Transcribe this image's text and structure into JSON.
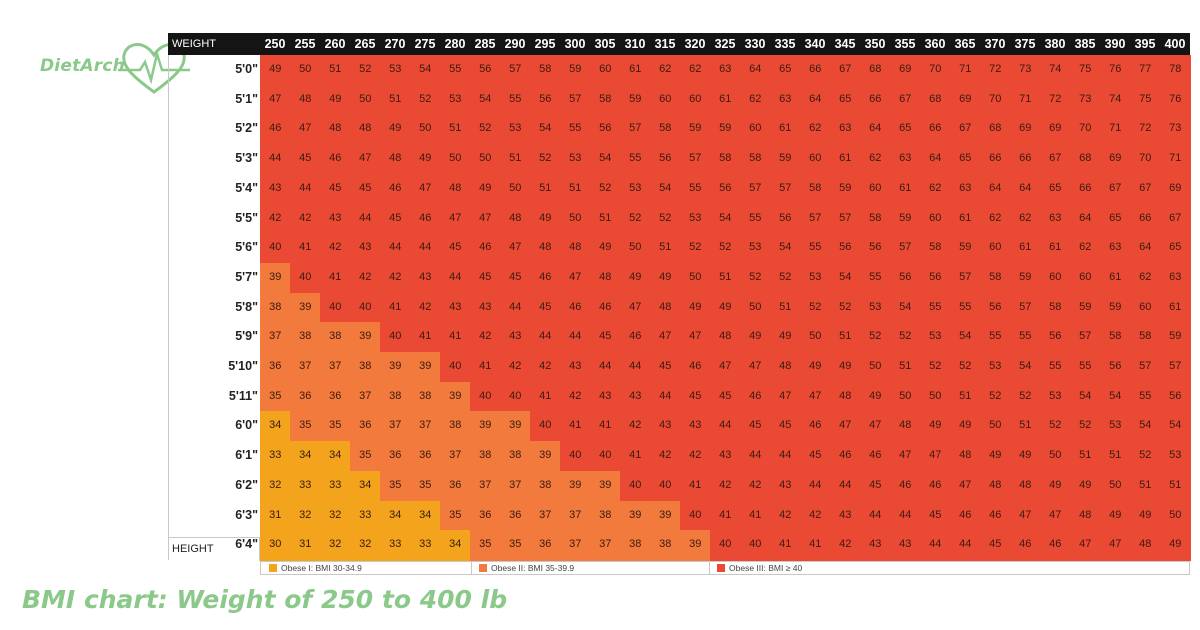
{
  "logo": {
    "text": "DietArch",
    "icon": "heart-pulse-icon",
    "color": "#8bc98a"
  },
  "caption": "BMI chart: Weight of 250 to 400 lb",
  "chart_data": {
    "type": "table",
    "title": "",
    "column_header": "WEIGHT",
    "row_header": "HEIGHT",
    "weights": [
      250,
      255,
      260,
      265,
      270,
      275,
      280,
      285,
      290,
      295,
      300,
      305,
      310,
      315,
      320,
      325,
      330,
      335,
      340,
      345,
      350,
      355,
      360,
      365,
      370,
      375,
      380,
      385,
      390,
      395,
      400
    ],
    "heights": [
      "5'0\"",
      "5'1\"",
      "5'2\"",
      "5'3\"",
      "5'4\"",
      "5'5\"",
      "5'6\"",
      "5'7\"",
      "5'8\"",
      "5'9\"",
      "5'10\"",
      "5'11\"",
      "6'0\"",
      "6'1\"",
      "6'2\"",
      "6'3\"",
      "6'4\""
    ],
    "values": [
      [
        49,
        50,
        51,
        52,
        53,
        54,
        55,
        56,
        57,
        58,
        59,
        60,
        61,
        62,
        62,
        63,
        64,
        65,
        66,
        67,
        68,
        69,
        70,
        71,
        72,
        73,
        74,
        75,
        76,
        77,
        78
      ],
      [
        47,
        48,
        49,
        50,
        51,
        52,
        53,
        54,
        55,
        56,
        57,
        58,
        59,
        60,
        60,
        61,
        62,
        63,
        64,
        65,
        66,
        67,
        68,
        69,
        70,
        71,
        72,
        73,
        74,
        75,
        76
      ],
      [
        46,
        47,
        48,
        48,
        49,
        50,
        51,
        52,
        53,
        54,
        55,
        56,
        57,
        58,
        59,
        59,
        60,
        61,
        62,
        63,
        64,
        65,
        66,
        67,
        68,
        69,
        69,
        70,
        71,
        72,
        73
      ],
      [
        44,
        45,
        46,
        47,
        48,
        49,
        50,
        50,
        51,
        52,
        53,
        54,
        55,
        56,
        57,
        58,
        58,
        59,
        60,
        61,
        62,
        63,
        64,
        65,
        66,
        66,
        67,
        68,
        69,
        70,
        71
      ],
      [
        43,
        44,
        45,
        45,
        46,
        47,
        48,
        49,
        50,
        51,
        51,
        52,
        53,
        54,
        55,
        56,
        57,
        57,
        58,
        59,
        60,
        61,
        62,
        63,
        64,
        64,
        65,
        66,
        67,
        67,
        69
      ],
      [
        42,
        42,
        43,
        44,
        45,
        46,
        47,
        47,
        48,
        49,
        50,
        51,
        52,
        52,
        53,
        54,
        55,
        56,
        57,
        57,
        58,
        59,
        60,
        61,
        62,
        62,
        63,
        64,
        65,
        66,
        67
      ],
      [
        40,
        41,
        42,
        43,
        44,
        44,
        45,
        46,
        47,
        48,
        48,
        49,
        50,
        51,
        52,
        52,
        53,
        54,
        55,
        56,
        56,
        57,
        58,
        59,
        60,
        61,
        61,
        62,
        63,
        64,
        65
      ],
      [
        39,
        40,
        41,
        42,
        42,
        43,
        44,
        45,
        45,
        46,
        47,
        48,
        49,
        49,
        50,
        51,
        52,
        52,
        53,
        54,
        55,
        56,
        56,
        57,
        58,
        59,
        60,
        60,
        61,
        62,
        63
      ],
      [
        38,
        39,
        40,
        40,
        41,
        42,
        43,
        43,
        44,
        45,
        46,
        46,
        47,
        48,
        49,
        49,
        50,
        51,
        52,
        52,
        53,
        54,
        55,
        55,
        56,
        57,
        58,
        59,
        59,
        60,
        61
      ],
      [
        37,
        38,
        38,
        39,
        40,
        41,
        41,
        42,
        43,
        44,
        44,
        45,
        46,
        47,
        47,
        48,
        49,
        49,
        50,
        51,
        52,
        52,
        53,
        54,
        55,
        55,
        56,
        57,
        58,
        58,
        59
      ],
      [
        36,
        37,
        37,
        38,
        39,
        39,
        40,
        41,
        42,
        42,
        43,
        44,
        44,
        45,
        46,
        47,
        47,
        48,
        49,
        49,
        50,
        51,
        52,
        52,
        53,
        54,
        55,
        55,
        56,
        57,
        57
      ],
      [
        35,
        36,
        36,
        37,
        38,
        38,
        39,
        40,
        40,
        41,
        42,
        43,
        43,
        44,
        45,
        45,
        46,
        47,
        47,
        48,
        49,
        50,
        50,
        51,
        52,
        52,
        53,
        54,
        54,
        55,
        56
      ],
      [
        34,
        35,
        35,
        36,
        37,
        37,
        38,
        39,
        39,
        40,
        41,
        41,
        42,
        43,
        43,
        44,
        45,
        45,
        46,
        47,
        47,
        48,
        49,
        49,
        50,
        51,
        52,
        52,
        53,
        54,
        54
      ],
      [
        33,
        34,
        34,
        35,
        36,
        36,
        37,
        38,
        38,
        39,
        40,
        40,
        41,
        42,
        42,
        43,
        44,
        44,
        45,
        46,
        46,
        47,
        47,
        48,
        49,
        49,
        50,
        51,
        51,
        52,
        53
      ],
      [
        32,
        33,
        33,
        34,
        35,
        35,
        36,
        37,
        37,
        38,
        39,
        39,
        40,
        40,
        41,
        42,
        42,
        43,
        44,
        44,
        45,
        46,
        46,
        47,
        48,
        48,
        49,
        49,
        50,
        51,
        51
      ],
      [
        31,
        32,
        32,
        33,
        34,
        34,
        35,
        36,
        36,
        37,
        37,
        38,
        39,
        39,
        40,
        41,
        41,
        42,
        42,
        43,
        44,
        44,
        45,
        46,
        46,
        47,
        47,
        48,
        49,
        49,
        50
      ],
      [
        30,
        31,
        32,
        32,
        33,
        33,
        34,
        35,
        35,
        36,
        37,
        37,
        38,
        38,
        39,
        40,
        40,
        41,
        41,
        42,
        43,
        43,
        44,
        44,
        45,
        46,
        46,
        47,
        47,
        48,
        49
      ]
    ],
    "categories": [
      {
        "label": "Obese I: BMI 30-34.9",
        "min": 30,
        "max": 34.9,
        "color": "#f3a41c"
      },
      {
        "label": "Obese II: BMI 35-39.9",
        "min": 35,
        "max": 39.9,
        "color": "#f27a3c"
      },
      {
        "label": "Obese III: BMI ≥ 40",
        "min": 40,
        "max": 99,
        "color": "#ea4a33"
      }
    ]
  }
}
